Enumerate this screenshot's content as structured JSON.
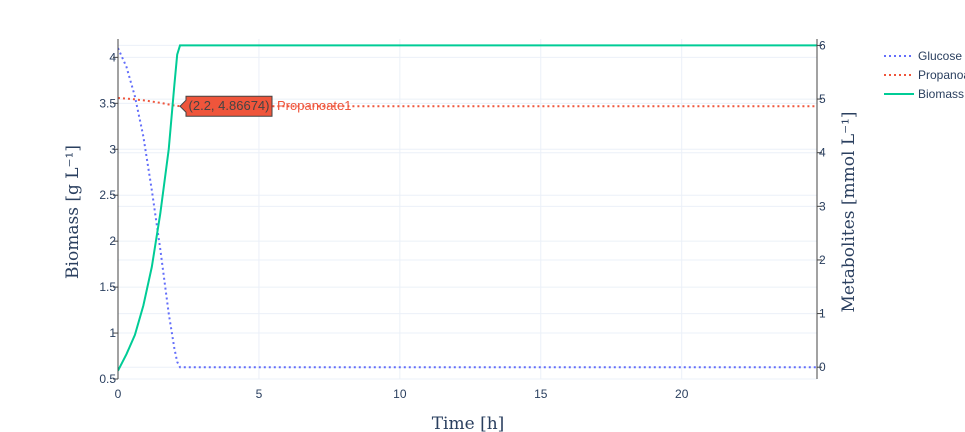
{
  "chart_data": {
    "type": "line",
    "xlabel": "Time [h]",
    "y_left_label": "Biomass [g L⁻¹]",
    "y_right_label": "Metabolites [mmol L⁻¹]",
    "xlim": [
      0,
      24.8
    ],
    "ylim_left": [
      0.5,
      4.2
    ],
    "ylim_right": [
      -0.22,
      6.12
    ],
    "x_ticks": [
      0,
      5,
      10,
      15,
      20
    ],
    "y_left_ticks": [
      0.5,
      1,
      1.5,
      2,
      2.5,
      3,
      3.5,
      4
    ],
    "y_right_ticks": [
      0,
      1,
      2,
      3,
      4,
      5,
      6
    ],
    "grid": true,
    "legend_position": "top-right",
    "series": [
      {
        "name": "Glucose",
        "axis": "right",
        "dash": "dot",
        "color": "#636efa",
        "x": [
          0,
          0.3,
          0.6,
          0.9,
          1.2,
          1.5,
          1.8,
          2.0,
          2.1,
          2.2,
          24.8
        ],
        "y": [
          5.95,
          5.6,
          5.05,
          4.3,
          3.3,
          2.2,
          1.0,
          0.35,
          0.1,
          0.0,
          0.0
        ]
      },
      {
        "name": "Propanoate1",
        "axis": "right",
        "dash": "dot",
        "color": "#ef553b",
        "x": [
          0,
          0.5,
          1.0,
          1.5,
          2.0,
          2.2,
          24.8
        ],
        "y": [
          5.02,
          5.0,
          4.97,
          4.93,
          4.88,
          4.86674,
          4.86674
        ]
      },
      {
        "name": "Biomass",
        "axis": "left",
        "dash": "solid",
        "color": "#00cc96",
        "x": [
          0,
          0.3,
          0.6,
          0.9,
          1.2,
          1.5,
          1.8,
          2.0,
          2.1,
          2.2,
          24.8
        ],
        "y": [
          0.59,
          0.77,
          0.98,
          1.3,
          1.72,
          2.3,
          3.0,
          3.7,
          4.03,
          4.13,
          4.13
        ]
      }
    ],
    "hover_label": {
      "series": "Propanoate1",
      "x": 2.2,
      "y": 4.86674,
      "text": "(2.2, 4.86674)",
      "name": "Propanoate1",
      "color": "#ef553b"
    }
  }
}
